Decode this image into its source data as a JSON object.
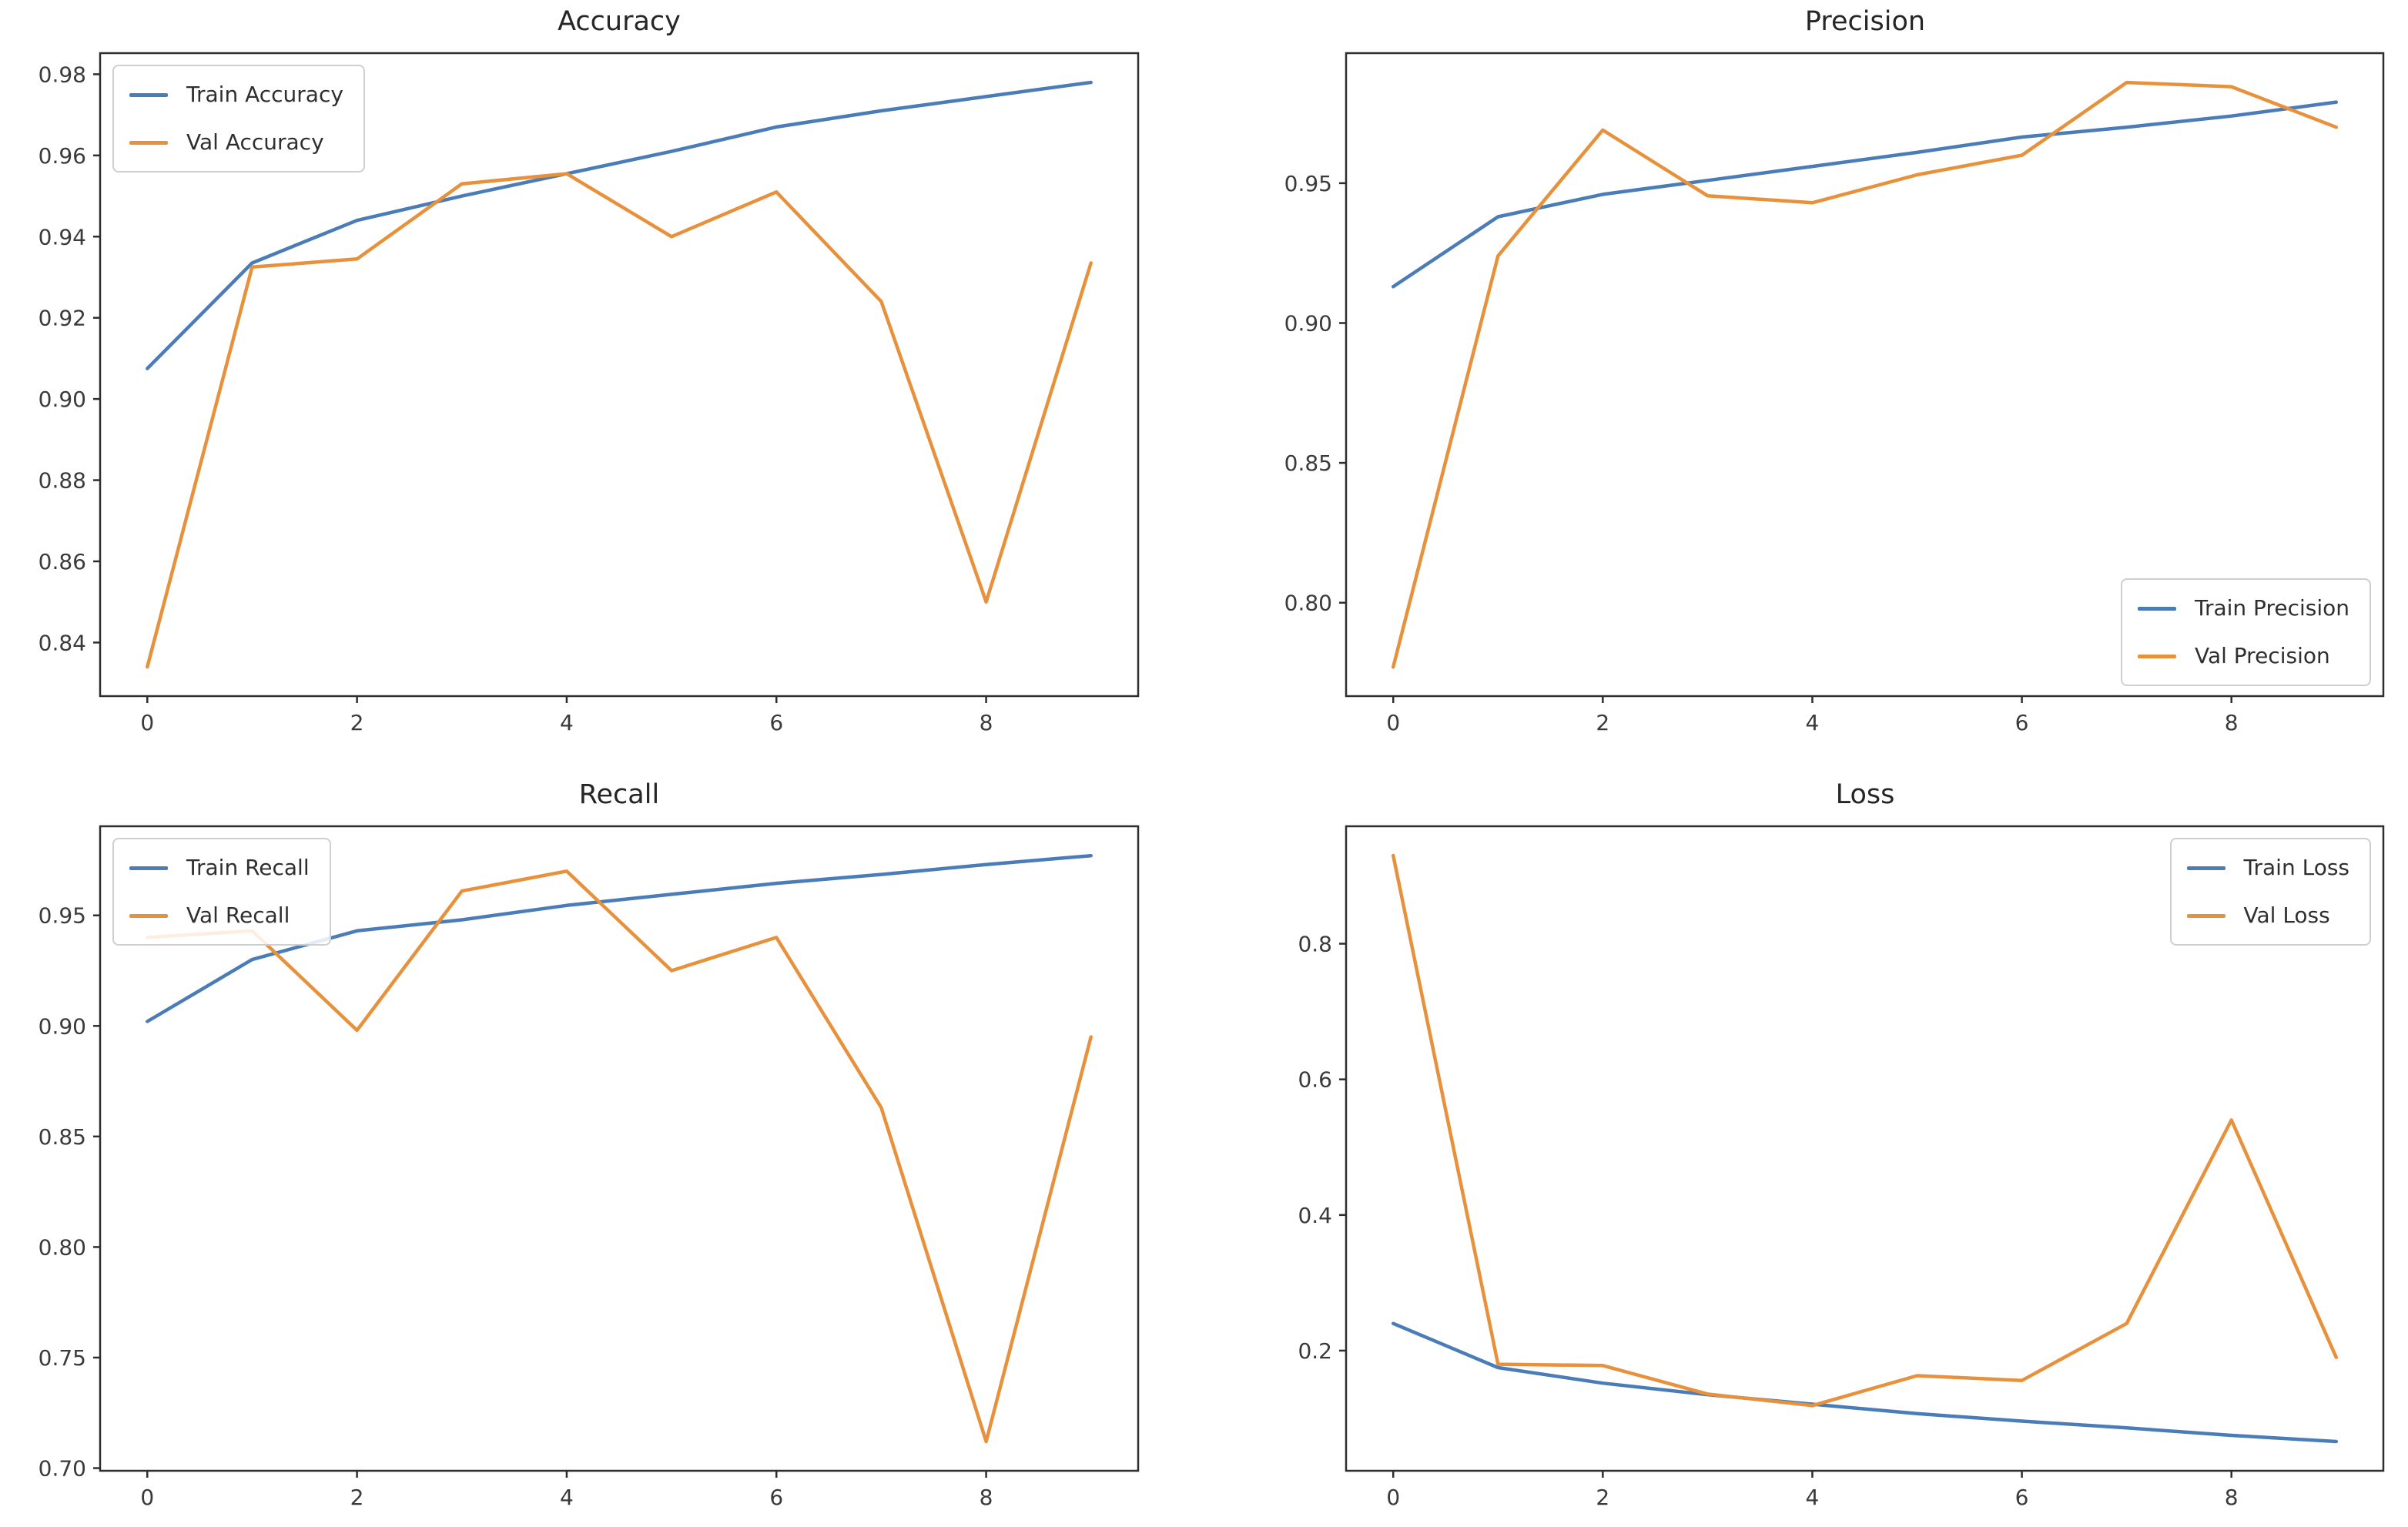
{
  "figure": {
    "background_color": "#ffffff",
    "axis_color": "#2e2e2e",
    "tick_label_color": "#3a3a3a",
    "title_color": "#262626",
    "train_color": "#4a7cb8",
    "val_color": "#e8913c"
  },
  "chart_data": [
    {
      "type": "line",
      "title": "Accuracy",
      "x": [
        0,
        1,
        2,
        3,
        4,
        5,
        6,
        7,
        8,
        9
      ],
      "xlim": [
        -0.45,
        9.45
      ],
      "ylim": [
        0.8268,
        0.9852
      ],
      "xticks": [
        0,
        2,
        4,
        6,
        8
      ],
      "yticks": [
        0.84,
        0.86,
        0.88,
        0.9,
        0.92,
        0.94,
        0.96,
        0.98
      ],
      "ytick_decimals": 2,
      "grid": false,
      "legend_position": "upper-left",
      "series": [
        {
          "name": "Train Accuracy",
          "color_role": "train",
          "values": [
            0.9075,
            0.9335,
            0.944,
            0.95,
            0.9555,
            0.961,
            0.967,
            0.971,
            0.9745,
            0.978
          ]
        },
        {
          "name": "Val Accuracy",
          "color_role": "val",
          "values": [
            0.834,
            0.9325,
            0.9345,
            0.953,
            0.9555,
            0.94,
            0.951,
            0.924,
            0.85,
            0.9335
          ]
        }
      ]
    },
    {
      "type": "line",
      "title": "Precision",
      "x": [
        0,
        1,
        2,
        3,
        4,
        5,
        6,
        7,
        8,
        9
      ],
      "xlim": [
        -0.45,
        9.45
      ],
      "ylim": [
        0.7666,
        0.9965
      ],
      "xticks": [
        0,
        2,
        4,
        6,
        8
      ],
      "yticks": [
        0.8,
        0.85,
        0.9,
        0.95
      ],
      "ytick_decimals": 2,
      "grid": false,
      "legend_position": "lower-right",
      "series": [
        {
          "name": "Train Precision",
          "color_role": "train",
          "values": [
            0.913,
            0.938,
            0.946,
            0.951,
            0.956,
            0.961,
            0.9665,
            0.97,
            0.974,
            0.979
          ]
        },
        {
          "name": "Val Precision",
          "color_role": "val",
          "values": [
            0.777,
            0.924,
            0.969,
            0.9455,
            0.943,
            0.953,
            0.96,
            0.986,
            0.9845,
            0.97
          ]
        }
      ]
    },
    {
      "type": "line",
      "title": "Recall",
      "x": [
        0,
        1,
        2,
        3,
        4,
        5,
        6,
        7,
        8,
        9
      ],
      "xlim": [
        -0.45,
        9.45
      ],
      "ylim": [
        0.6988,
        0.9903
      ],
      "xticks": [
        0,
        2,
        4,
        6,
        8
      ],
      "yticks": [
        0.7,
        0.75,
        0.8,
        0.85,
        0.9,
        0.95
      ],
      "ytick_decimals": 2,
      "grid": false,
      "legend_position": "upper-left",
      "series": [
        {
          "name": "Train Recall",
          "color_role": "train",
          "values": [
            0.902,
            0.93,
            0.943,
            0.948,
            0.9545,
            0.9595,
            0.9645,
            0.9685,
            0.973,
            0.977
          ]
        },
        {
          "name": "Val Recall",
          "color_role": "val",
          "values": [
            0.94,
            0.943,
            0.898,
            0.961,
            0.97,
            0.925,
            0.94,
            0.863,
            0.712,
            0.895
          ]
        }
      ]
    },
    {
      "type": "line",
      "title": "Loss",
      "x": [
        0,
        1,
        2,
        3,
        4,
        5,
        6,
        7,
        8,
        9
      ],
      "xlim": [
        -0.45,
        9.45
      ],
      "ylim": [
        0.0228,
        0.9732
      ],
      "xticks": [
        0,
        2,
        4,
        6,
        8
      ],
      "yticks": [
        0.2,
        0.4,
        0.6,
        0.8
      ],
      "ytick_decimals": 1,
      "grid": false,
      "legend_position": "upper-right",
      "series": [
        {
          "name": "Train Loss",
          "color_role": "train",
          "values": [
            0.24,
            0.175,
            0.152,
            0.135,
            0.121,
            0.107,
            0.096,
            0.086,
            0.075,
            0.066
          ]
        },
        {
          "name": "Val Loss",
          "color_role": "val",
          "values": [
            0.93,
            0.18,
            0.178,
            0.136,
            0.119,
            0.163,
            0.156,
            0.24,
            0.54,
            0.19
          ]
        }
      ]
    }
  ]
}
